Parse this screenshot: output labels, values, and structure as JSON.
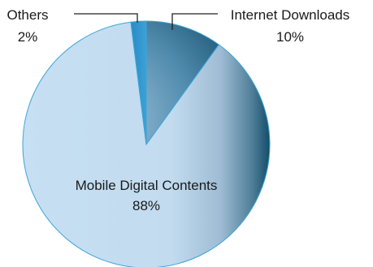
{
  "chart_data": {
    "type": "pie",
    "slices": [
      {
        "label": "Internet Downloads",
        "value": 10,
        "value_label": "10%",
        "color": "#1f5a78"
      },
      {
        "label": "Mobile Digital Contents",
        "value": 88,
        "value_label": "88%",
        "color": "#c5def2"
      },
      {
        "label": "Others",
        "value": 2,
        "value_label": "2%",
        "color": "#2e8fc8"
      }
    ],
    "title": "",
    "start": "12 o'clock",
    "direction": "clockwise",
    "edge_color": "#3aa5d8"
  }
}
